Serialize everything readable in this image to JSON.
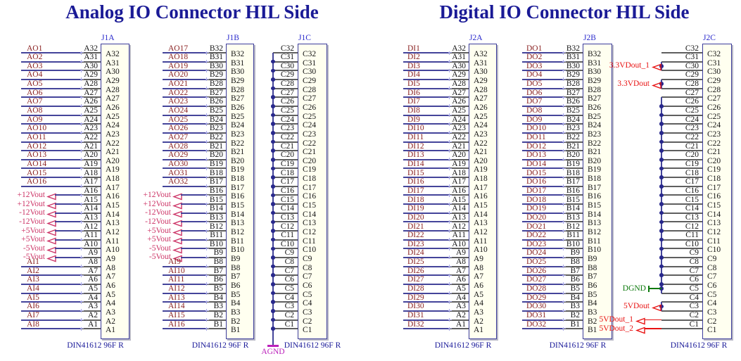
{
  "sheet": {
    "background": "#FFFFFF"
  },
  "analog": {
    "title": "Analog IO Connector HIL Side",
    "connectors": [
      {
        "designator": "J1A",
        "footprint": "DIN41612 96F R",
        "kind": "pin-rows",
        "pins": [
          {
            "num": "A32",
            "net": "AO1",
            "net_kind": "label"
          },
          {
            "num": "A31",
            "net": "AO2",
            "net_kind": "label"
          },
          {
            "num": "A30",
            "net": "AO3",
            "net_kind": "label"
          },
          {
            "num": "A29",
            "net": "AO4",
            "net_kind": "label"
          },
          {
            "num": "A28",
            "net": "AO5",
            "net_kind": "label"
          },
          {
            "num": "A27",
            "net": "AO6",
            "net_kind": "label"
          },
          {
            "num": "A26",
            "net": "AO7",
            "net_kind": "label"
          },
          {
            "num": "A25",
            "net": "AO8",
            "net_kind": "label"
          },
          {
            "num": "A24",
            "net": "AO9",
            "net_kind": "label"
          },
          {
            "num": "A23",
            "net": "AO10",
            "net_kind": "label"
          },
          {
            "num": "A22",
            "net": "AO11",
            "net_kind": "label"
          },
          {
            "num": "A21",
            "net": "AO12",
            "net_kind": "label"
          },
          {
            "num": "A20",
            "net": "AO13",
            "net_kind": "label"
          },
          {
            "num": "A19",
            "net": "AO14",
            "net_kind": "label"
          },
          {
            "num": "A18",
            "net": "AO15",
            "net_kind": "label"
          },
          {
            "num": "A17",
            "net": "AO16",
            "net_kind": "label"
          },
          {
            "num": "A16",
            "net": "+12Vout",
            "net_kind": "port"
          },
          {
            "num": "A15",
            "net": "+12Vout",
            "net_kind": "port"
          },
          {
            "num": "A14",
            "net": "-12Vout",
            "net_kind": "port"
          },
          {
            "num": "A13",
            "net": "-12Vout",
            "net_kind": "port"
          },
          {
            "num": "A12",
            "net": "+5Vout",
            "net_kind": "port"
          },
          {
            "num": "A11",
            "net": "+5Vout",
            "net_kind": "port"
          },
          {
            "num": "A10",
            "net": "-5Vout",
            "net_kind": "port"
          },
          {
            "num": "A9",
            "net": "-5Vout",
            "net_kind": "port"
          },
          {
            "num": "A8",
            "net": "AI1",
            "net_kind": "label"
          },
          {
            "num": "A7",
            "net": "AI2",
            "net_kind": "label"
          },
          {
            "num": "A6",
            "net": "AI3",
            "net_kind": "label"
          },
          {
            "num": "A5",
            "net": "AI4",
            "net_kind": "label"
          },
          {
            "num": "A4",
            "net": "AI5",
            "net_kind": "label"
          },
          {
            "num": "A3",
            "net": "AI6",
            "net_kind": "label"
          },
          {
            "num": "A2",
            "net": "AI7",
            "net_kind": "label"
          },
          {
            "num": "A1",
            "net": "AI8",
            "net_kind": "label"
          }
        ]
      },
      {
        "designator": "J1B",
        "footprint": "DIN41612 96F R",
        "kind": "pin-rows",
        "pins": [
          {
            "num": "B32",
            "net": "AO17",
            "net_kind": "label"
          },
          {
            "num": "B31",
            "net": "AO18",
            "net_kind": "label"
          },
          {
            "num": "B30",
            "net": "AO19",
            "net_kind": "label"
          },
          {
            "num": "B29",
            "net": "AO20",
            "net_kind": "label"
          },
          {
            "num": "B28",
            "net": "AO21",
            "net_kind": "label"
          },
          {
            "num": "B27",
            "net": "AO22",
            "net_kind": "label"
          },
          {
            "num": "B26",
            "net": "AO23",
            "net_kind": "label"
          },
          {
            "num": "B25",
            "net": "AO24",
            "net_kind": "label"
          },
          {
            "num": "B24",
            "net": "AO25",
            "net_kind": "label"
          },
          {
            "num": "B23",
            "net": "AO26",
            "net_kind": "label"
          },
          {
            "num": "B22",
            "net": "AO27",
            "net_kind": "label"
          },
          {
            "num": "B21",
            "net": "AO28",
            "net_kind": "label"
          },
          {
            "num": "B20",
            "net": "AO29",
            "net_kind": "label"
          },
          {
            "num": "B19",
            "net": "AO30",
            "net_kind": "label"
          },
          {
            "num": "B18",
            "net": "AO31",
            "net_kind": "label"
          },
          {
            "num": "B17",
            "net": "AO32",
            "net_kind": "label"
          },
          {
            "num": "B16",
            "net": "+12Vout",
            "net_kind": "port"
          },
          {
            "num": "B15",
            "net": "+12Vout",
            "net_kind": "port"
          },
          {
            "num": "B14",
            "net": "-12Vout",
            "net_kind": "port"
          },
          {
            "num": "B13",
            "net": "-12Vout",
            "net_kind": "port"
          },
          {
            "num": "B12",
            "net": "+5Vout",
            "net_kind": "port"
          },
          {
            "num": "B11",
            "net": "+5Vout",
            "net_kind": "port"
          },
          {
            "num": "B10",
            "net": "-5Vout",
            "net_kind": "port"
          },
          {
            "num": "B9",
            "net": "-5Vout",
            "net_kind": "port"
          },
          {
            "num": "B8",
            "net": "AI9",
            "net_kind": "label"
          },
          {
            "num": "B7",
            "net": "AI10",
            "net_kind": "label"
          },
          {
            "num": "B6",
            "net": "AI11",
            "net_kind": "label"
          },
          {
            "num": "B5",
            "net": "AI12",
            "net_kind": "label"
          },
          {
            "num": "B4",
            "net": "AI13",
            "net_kind": "label"
          },
          {
            "num": "B3",
            "net": "AI14",
            "net_kind": "label"
          },
          {
            "num": "B2",
            "net": "AI15",
            "net_kind": "label"
          },
          {
            "num": "B1",
            "net": "AI16",
            "net_kind": "label"
          }
        ]
      },
      {
        "designator": "J1C",
        "footprint": "DIN41612 96F R",
        "kind": "bus-rows",
        "pins": [
          "C32",
          "C31",
          "C30",
          "C29",
          "C28",
          "C27",
          "C26",
          "C25",
          "C24",
          "C23",
          "C22",
          "C21",
          "C20",
          "C19",
          "C18",
          "C17",
          "C16",
          "C15",
          "C14",
          "C13",
          "C12",
          "C11",
          "C10",
          "C9",
          "C8",
          "C7",
          "C6",
          "C5",
          "C4",
          "C3",
          "C2",
          "C1"
        ],
        "groups": [
          {
            "from": "C32",
            "to": "C1",
            "net": "AGND",
            "style": "power-bar",
            "color": "magenta"
          }
        ]
      }
    ]
  },
  "digital": {
    "title": "Digital IO Connector HIL Side",
    "connectors": [
      {
        "designator": "J2A",
        "footprint": "DIN41612 96F R",
        "kind": "pin-rows",
        "pins": [
          {
            "num": "A32",
            "net": "DI1",
            "net_kind": "label"
          },
          {
            "num": "A31",
            "net": "DI2",
            "net_kind": "label"
          },
          {
            "num": "A30",
            "net": "DI3",
            "net_kind": "label"
          },
          {
            "num": "A29",
            "net": "DI4",
            "net_kind": "label"
          },
          {
            "num": "A28",
            "net": "DI5",
            "net_kind": "label"
          },
          {
            "num": "A27",
            "net": "DI6",
            "net_kind": "label"
          },
          {
            "num": "A26",
            "net": "DI7",
            "net_kind": "label"
          },
          {
            "num": "A25",
            "net": "DI8",
            "net_kind": "label"
          },
          {
            "num": "A24",
            "net": "DI9",
            "net_kind": "label"
          },
          {
            "num": "A23",
            "net": "DI10",
            "net_kind": "label"
          },
          {
            "num": "A22",
            "net": "DI11",
            "net_kind": "label"
          },
          {
            "num": "A21",
            "net": "DI12",
            "net_kind": "label"
          },
          {
            "num": "A20",
            "net": "DI13",
            "net_kind": "label"
          },
          {
            "num": "A19",
            "net": "DI14",
            "net_kind": "label"
          },
          {
            "num": "A18",
            "net": "DI15",
            "net_kind": "label"
          },
          {
            "num": "A17",
            "net": "DI16",
            "net_kind": "label"
          },
          {
            "num": "A16",
            "net": "DI17",
            "net_kind": "label"
          },
          {
            "num": "A15",
            "net": "DI18",
            "net_kind": "label"
          },
          {
            "num": "A14",
            "net": "DI19",
            "net_kind": "label"
          },
          {
            "num": "A13",
            "net": "DI20",
            "net_kind": "label"
          },
          {
            "num": "A12",
            "net": "DI21",
            "net_kind": "label"
          },
          {
            "num": "A11",
            "net": "DI22",
            "net_kind": "label"
          },
          {
            "num": "A10",
            "net": "DI23",
            "net_kind": "label"
          },
          {
            "num": "A9",
            "net": "DI24",
            "net_kind": "label"
          },
          {
            "num": "A8",
            "net": "DI25",
            "net_kind": "label"
          },
          {
            "num": "A7",
            "net": "DI26",
            "net_kind": "label"
          },
          {
            "num": "A6",
            "net": "DI27",
            "net_kind": "label"
          },
          {
            "num": "A5",
            "net": "DI28",
            "net_kind": "label"
          },
          {
            "num": "A4",
            "net": "DI29",
            "net_kind": "label"
          },
          {
            "num": "A3",
            "net": "DI30",
            "net_kind": "label"
          },
          {
            "num": "A2",
            "net": "DI31",
            "net_kind": "label"
          },
          {
            "num": "A1",
            "net": "DI32",
            "net_kind": "label"
          }
        ]
      },
      {
        "designator": "J2B",
        "footprint": "DIN41612 96F R",
        "kind": "pin-rows",
        "pins": [
          {
            "num": "B32",
            "net": "DO1",
            "net_kind": "label"
          },
          {
            "num": "B31",
            "net": "DO2",
            "net_kind": "label"
          },
          {
            "num": "B30",
            "net": "DO3",
            "net_kind": "label"
          },
          {
            "num": "B29",
            "net": "DO4",
            "net_kind": "label"
          },
          {
            "num": "B28",
            "net": "DO5",
            "net_kind": "label"
          },
          {
            "num": "B27",
            "net": "DO6",
            "net_kind": "label"
          },
          {
            "num": "B26",
            "net": "DO7",
            "net_kind": "label"
          },
          {
            "num": "B25",
            "net": "DO8",
            "net_kind": "label"
          },
          {
            "num": "B24",
            "net": "DO9",
            "net_kind": "label"
          },
          {
            "num": "B23",
            "net": "DO10",
            "net_kind": "label"
          },
          {
            "num": "B22",
            "net": "DO11",
            "net_kind": "label"
          },
          {
            "num": "B21",
            "net": "DO12",
            "net_kind": "label"
          },
          {
            "num": "B20",
            "net": "DO13",
            "net_kind": "label"
          },
          {
            "num": "B19",
            "net": "DO14",
            "net_kind": "label"
          },
          {
            "num": "B18",
            "net": "DO15",
            "net_kind": "label"
          },
          {
            "num": "B17",
            "net": "DO16",
            "net_kind": "label"
          },
          {
            "num": "B16",
            "net": "DO17",
            "net_kind": "label"
          },
          {
            "num": "B15",
            "net": "DO18",
            "net_kind": "label"
          },
          {
            "num": "B14",
            "net": "DO19",
            "net_kind": "label"
          },
          {
            "num": "B13",
            "net": "DO20",
            "net_kind": "label"
          },
          {
            "num": "B12",
            "net": "DO21",
            "net_kind": "label"
          },
          {
            "num": "B11",
            "net": "DO22",
            "net_kind": "label"
          },
          {
            "num": "B10",
            "net": "DO23",
            "net_kind": "label"
          },
          {
            "num": "B9",
            "net": "DO24",
            "net_kind": "label"
          },
          {
            "num": "B8",
            "net": "DO25",
            "net_kind": "label"
          },
          {
            "num": "B7",
            "net": "DO26",
            "net_kind": "label"
          },
          {
            "num": "B6",
            "net": "DO27",
            "net_kind": "label"
          },
          {
            "num": "B5",
            "net": "DO28",
            "net_kind": "label"
          },
          {
            "num": "B4",
            "net": "DO29",
            "net_kind": "label"
          },
          {
            "num": "B3",
            "net": "DO30",
            "net_kind": "label"
          },
          {
            "num": "B2",
            "net": "DO31",
            "net_kind": "label"
          },
          {
            "num": "B1",
            "net": "DO32",
            "net_kind": "label"
          }
        ]
      },
      {
        "designator": "J2C",
        "footprint": "DIN41612 96F R",
        "kind": "bus-rows",
        "pins": [
          "C32",
          "C31",
          "C30",
          "C29",
          "C28",
          "C27",
          "C26",
          "C25",
          "C24",
          "C23",
          "C22",
          "C21",
          "C20",
          "C19",
          "C18",
          "C17",
          "C16",
          "C15",
          "C14",
          "C13",
          "C12",
          "C11",
          "C10",
          "C9",
          "C8",
          "C7",
          "C6",
          "C5",
          "C4",
          "C3",
          "C2",
          "C1"
        ],
        "unconnected": [
          "C32"
        ],
        "groups": [
          {
            "from": "C31",
            "to": "C30",
            "net": "3.3VDout_1",
            "style": "arrow",
            "color": "red"
          },
          {
            "from": "C29",
            "to": "C28",
            "net": "3.3VDout",
            "style": "arrow",
            "color": "red"
          },
          {
            "from": "C27",
            "to": "C5",
            "net": "DGND",
            "style": "bar",
            "color": "green"
          },
          {
            "from": "C4",
            "to": "C3",
            "net": "5VDout",
            "style": "arrow",
            "color": "red"
          },
          {
            "from": "C2",
            "to": "C2",
            "net": "5VDout_1",
            "style": "arrow",
            "color": "red"
          },
          {
            "from": "C1",
            "to": "C1",
            "net": "5VDout_2",
            "style": "arrow",
            "color": "red"
          }
        ]
      }
    ]
  },
  "colors": {
    "title_navy": "#1A1A96",
    "designator_blue": "#2A2ACC",
    "din_navy": "#1A1A99",
    "wire_blue": "#44449A",
    "pin_gray": "#5F5F5F",
    "net_label_maroon": "#8B2424",
    "pin_text": "#141414",
    "box_fill": "#FFFFF0",
    "box_border": "#3C3C9C",
    "port_pink": "#CC3366",
    "port_red": "#E81111",
    "port_green": "#0E7A0E",
    "port_magenta": "#BB22BB",
    "junction": "#28288C",
    "cross_mark": "#A8A8E8"
  }
}
